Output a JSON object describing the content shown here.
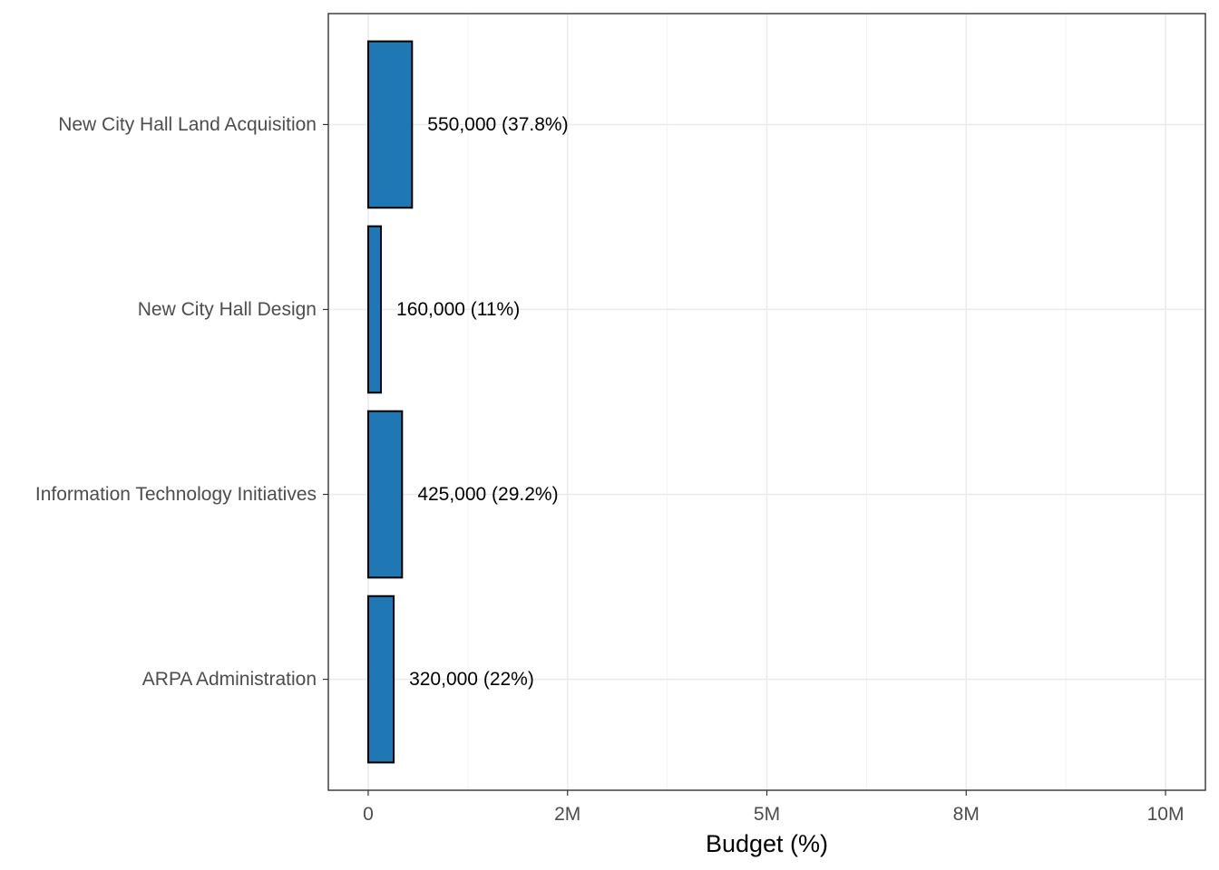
{
  "chart_data": {
    "type": "bar",
    "orientation": "horizontal",
    "categories": [
      "New City Hall Land Acquisition",
      "New City Hall Design",
      "Information Technology Initiatives",
      "ARPA Administration"
    ],
    "values": [
      550000,
      160000,
      425000,
      320000
    ],
    "data_labels": [
      "550,000 (37.8%)",
      "160,000 (11%)",
      "425,000 (29.2%)",
      "320,000 (22%)"
    ],
    "xlabel": "Budget (%)",
    "ylabel": "",
    "xlim": [
      -500000,
      10500000
    ],
    "x_ticks": [
      {
        "value": 0,
        "label": "0"
      },
      {
        "value": 2500000,
        "label": "2M"
      },
      {
        "value": 5000000,
        "label": "5M"
      },
      {
        "value": 7500000,
        "label": "8M"
      },
      {
        "value": 10000000,
        "label": "10M"
      }
    ],
    "x_minor_ticks": [
      1250000,
      3750000,
      6250000,
      8750000
    ],
    "grid": true,
    "bar_color": "#1f77b4",
    "bar_outline": "#000000"
  }
}
